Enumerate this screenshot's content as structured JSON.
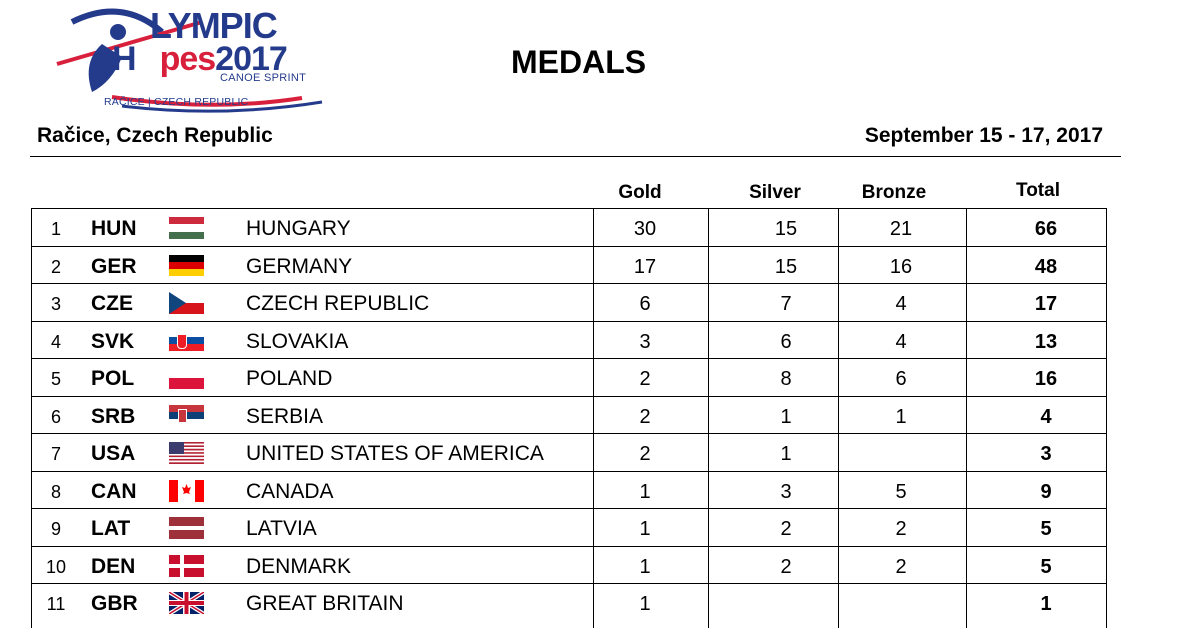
{
  "header": {
    "logo": {
      "line1": "LYMPIC",
      "line2_a": "H",
      "line2_b": "pes",
      "line2_c": "2017",
      "line3": "CANOE SPRINT",
      "line4": "RAČICE | CZECH REPUBLIC"
    },
    "title": "MEDALS",
    "place": "Račice, Czech Republic",
    "dates": "September 15 - 17, 2017"
  },
  "columns": {
    "gold": "Gold",
    "silver": "Silver",
    "bronze": "Bronze",
    "total": "Total"
  },
  "rows": [
    {
      "rank": "1",
      "code": "HUN",
      "flag": "hungary-flag-icon",
      "name": "HUNGARY",
      "gold": "30",
      "silver": "15",
      "bronze": "21",
      "total": "66"
    },
    {
      "rank": "2",
      "code": "GER",
      "flag": "germany-flag-icon",
      "name": "GERMANY",
      "gold": "17",
      "silver": "15",
      "bronze": "16",
      "total": "48"
    },
    {
      "rank": "3",
      "code": "CZE",
      "flag": "czech-flag-icon",
      "name": "CZECH REPUBLIC",
      "gold": "6",
      "silver": "7",
      "bronze": "4",
      "total": "17"
    },
    {
      "rank": "4",
      "code": "SVK",
      "flag": "slovakia-flag-icon",
      "name": "SLOVAKIA",
      "gold": "3",
      "silver": "6",
      "bronze": "4",
      "total": "13"
    },
    {
      "rank": "5",
      "code": "POL",
      "flag": "poland-flag-icon",
      "name": "POLAND",
      "gold": "2",
      "silver": "8",
      "bronze": "6",
      "total": "16"
    },
    {
      "rank": "6",
      "code": "SRB",
      "flag": "serbia-flag-icon",
      "name": "SERBIA",
      "gold": "2",
      "silver": "1",
      "bronze": "1",
      "total": "4"
    },
    {
      "rank": "7",
      "code": "USA",
      "flag": "usa-flag-icon",
      "name": "UNITED STATES OF AMERICA",
      "gold": "2",
      "silver": "1",
      "bronze": "",
      "total": "3"
    },
    {
      "rank": "8",
      "code": "CAN",
      "flag": "canada-flag-icon",
      "name": "CANADA",
      "gold": "1",
      "silver": "3",
      "bronze": "5",
      "total": "9"
    },
    {
      "rank": "9",
      "code": "LAT",
      "flag": "latvia-flag-icon",
      "name": "LATVIA",
      "gold": "1",
      "silver": "2",
      "bronze": "2",
      "total": "5"
    },
    {
      "rank": "10",
      "code": "DEN",
      "flag": "denmark-flag-icon",
      "name": "DENMARK",
      "gold": "1",
      "silver": "2",
      "bronze": "2",
      "total": "5"
    },
    {
      "rank": "11",
      "code": "GBR",
      "flag": "great-britain-flag-icon",
      "name": "GREAT BRITAIN",
      "gold": "1",
      "silver": "",
      "bronze": "",
      "total": "1"
    }
  ],
  "colors": {
    "logo_blue": "#243b8c",
    "logo_red": "#d8203c"
  }
}
